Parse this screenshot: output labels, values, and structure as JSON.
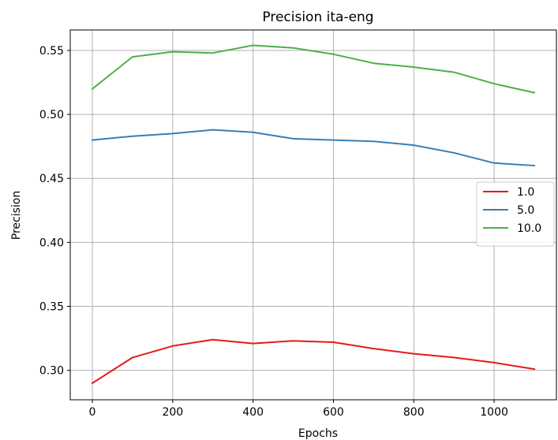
{
  "chart_data": {
    "type": "line",
    "title": "Precision ita-eng",
    "xlabel": "Epochs",
    "ylabel": "Precision",
    "x": [
      0,
      100,
      200,
      300,
      400,
      500,
      600,
      700,
      800,
      900,
      1000,
      1100
    ],
    "xlim": [
      -55,
      1155
    ],
    "ylim": [
      0.277,
      0.566
    ],
    "xticks": [
      0,
      200,
      400,
      600,
      800,
      1000
    ],
    "xtick_labels": [
      "0",
      "200",
      "400",
      "600",
      "800",
      "1000"
    ],
    "yticks": [
      0.3,
      0.35,
      0.4,
      0.45,
      0.5,
      0.55
    ],
    "ytick_labels": [
      "0.30",
      "0.35",
      "0.40",
      "0.45",
      "0.50",
      "0.55"
    ],
    "grid": true,
    "legend_position": "right",
    "series": [
      {
        "name": "1.0",
        "color": "#e41a1c",
        "values": [
          0.29,
          0.31,
          0.319,
          0.324,
          0.321,
          0.323,
          0.322,
          0.317,
          0.313,
          0.31,
          0.306,
          0.301
        ]
      },
      {
        "name": "5.0",
        "color": "#377eb8",
        "values": [
          0.48,
          0.483,
          0.485,
          0.488,
          0.486,
          0.481,
          0.48,
          0.479,
          0.476,
          0.47,
          0.462,
          0.46
        ]
      },
      {
        "name": "10.0",
        "color": "#4daf4a",
        "values": [
          0.52,
          0.545,
          0.549,
          0.548,
          0.554,
          0.552,
          0.547,
          0.54,
          0.537,
          0.533,
          0.524,
          0.517
        ]
      }
    ]
  }
}
